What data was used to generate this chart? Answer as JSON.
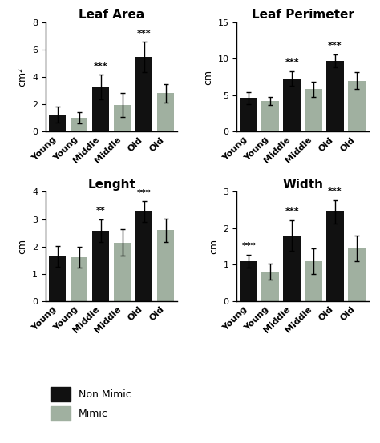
{
  "subplots": [
    {
      "title": "Leaf Area",
      "ylabel": "cm²",
      "ylim": [
        0,
        8
      ],
      "yticks": [
        0,
        2,
        4,
        6,
        8
      ],
      "categories": [
        "Young",
        "Young",
        "Middle",
        "Middle",
        "Old",
        "Old"
      ],
      "values": [
        1.25,
        1.0,
        3.25,
        1.95,
        5.45,
        2.8
      ],
      "errors": [
        0.6,
        0.4,
        0.9,
        0.9,
        1.1,
        0.7
      ],
      "colors": [
        "#111111",
        "#a0b0a0",
        "#111111",
        "#a0b0a0",
        "#111111",
        "#a0b0a0"
      ],
      "sig": [
        "",
        "",
        "***",
        "",
        "***",
        ""
      ]
    },
    {
      "title": "Leaf Perimeter",
      "ylabel": "cm",
      "ylim": [
        0,
        15
      ],
      "yticks": [
        0,
        5,
        10,
        15
      ],
      "categories": [
        "Young",
        "Young",
        "Middle",
        "Middle",
        "Old",
        "Old"
      ],
      "values": [
        4.6,
        4.2,
        7.3,
        5.8,
        9.7,
        7.0
      ],
      "errors": [
        0.8,
        0.6,
        1.0,
        1.0,
        0.9,
        1.1
      ],
      "colors": [
        "#111111",
        "#a0b0a0",
        "#111111",
        "#a0b0a0",
        "#111111",
        "#a0b0a0"
      ],
      "sig": [
        "",
        "",
        "***",
        "",
        "***",
        ""
      ]
    },
    {
      "title": "Lenght",
      "ylabel": "cm",
      "ylim": [
        0,
        4
      ],
      "yticks": [
        0,
        1,
        2,
        3,
        4
      ],
      "categories": [
        "Young",
        "Young",
        "Middle",
        "Middle",
        "Old",
        "Old"
      ],
      "values": [
        1.65,
        1.62,
        2.58,
        2.15,
        3.28,
        2.6
      ],
      "errors": [
        0.38,
        0.38,
        0.42,
        0.48,
        0.38,
        0.42
      ],
      "colors": [
        "#111111",
        "#a0b0a0",
        "#111111",
        "#a0b0a0",
        "#111111",
        "#a0b0a0"
      ],
      "sig": [
        "",
        "",
        "**",
        "",
        "***",
        ""
      ]
    },
    {
      "title": "Width",
      "ylabel": "cm",
      "ylim": [
        0,
        3
      ],
      "yticks": [
        0,
        1,
        2,
        3
      ],
      "categories": [
        "Young",
        "Young",
        "Middle",
        "Middle",
        "Old",
        "Old"
      ],
      "values": [
        1.1,
        0.82,
        1.8,
        1.1,
        2.45,
        1.45
      ],
      "errors": [
        0.18,
        0.22,
        0.42,
        0.35,
        0.32,
        0.35
      ],
      "colors": [
        "#111111",
        "#a0b0a0",
        "#111111",
        "#a0b0a0",
        "#111111",
        "#a0b0a0"
      ],
      "sig": [
        "***",
        "",
        "***",
        "",
        "***",
        ""
      ]
    }
  ],
  "legend_labels": [
    "Non Mimic",
    "Mimic"
  ],
  "legend_colors": [
    "#111111",
    "#a0b0a0"
  ],
  "background_color": "#ffffff",
  "title_fontsize": 11,
  "label_fontsize": 9,
  "tick_fontsize": 8,
  "sig_fontsize": 8
}
